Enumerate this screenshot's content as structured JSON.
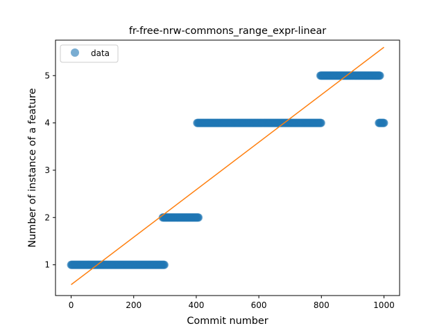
{
  "chart_data": {
    "type": "scatter",
    "title": "fr-free-nrw-commons_range_expr-linear",
    "xlabel": "Commit number",
    "ylabel": "Number of instance of a feature",
    "xlim": [
      -50,
      1050
    ],
    "ylim": [
      0.35,
      5.75
    ],
    "xticks": [
      0,
      200,
      400,
      600,
      800,
      1000
    ],
    "yticks": [
      1,
      2,
      3,
      4,
      5
    ],
    "legend": {
      "position": "top-left",
      "entries": [
        "data"
      ]
    },
    "grid": false,
    "colors": {
      "data": "#1f77b4",
      "fit": "#ff7f0e"
    },
    "series": [
      {
        "name": "data",
        "kind": "scatter",
        "segments": [
          {
            "x_start": 0,
            "x_end": 298,
            "y": 1
          },
          {
            "x_start": 293,
            "x_end": 408,
            "y": 2
          },
          {
            "x_start": 403,
            "x_end": 800,
            "y": 4
          },
          {
            "x_start": 797,
            "x_end": 987,
            "y": 5
          },
          {
            "x_start": 984,
            "x_end": 1000,
            "y": 4
          }
        ]
      },
      {
        "kind": "line",
        "x": [
          0,
          1000
        ],
        "y": [
          0.58,
          5.6
        ]
      }
    ]
  }
}
